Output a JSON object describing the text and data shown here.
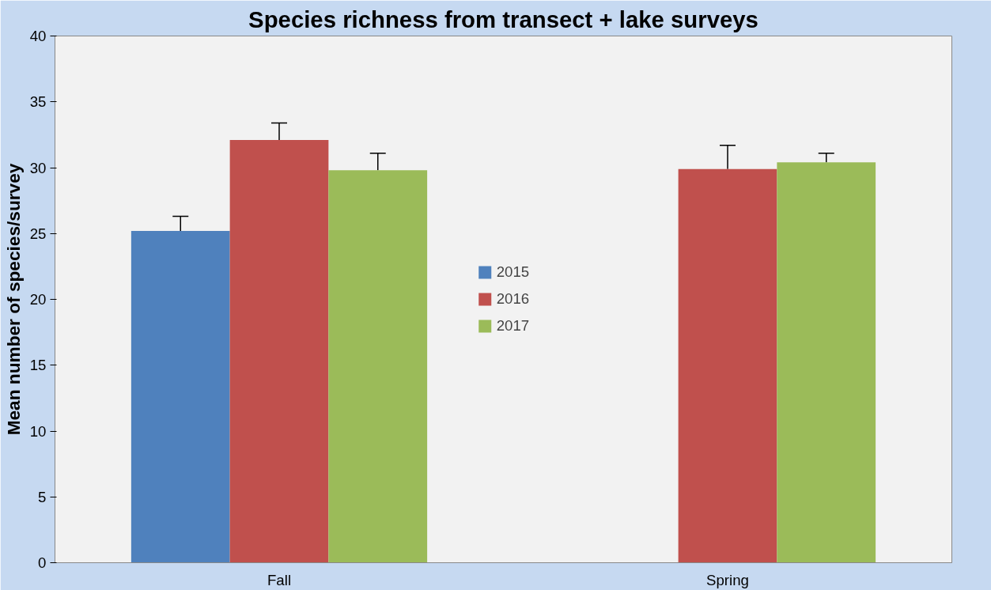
{
  "chart_data": {
    "type": "bar",
    "title": "Species richness from transect + lake surveys",
    "ylabel": "Mean number of species/survey",
    "categories": [
      "Fall",
      "Spring"
    ],
    "series": [
      {
        "name": "2015",
        "color": "#4f81bd",
        "values": [
          25.2,
          null
        ],
        "errors": [
          [
            25.2,
            26.3
          ],
          null
        ]
      },
      {
        "name": "2016",
        "color": "#c0504d",
        "values": [
          32.1,
          29.9
        ],
        "errors": [
          [
            32.1,
            33.4
          ],
          [
            29.9,
            31.7
          ]
        ]
      },
      {
        "name": "2017",
        "color": "#9bbb59",
        "values": [
          29.8,
          30.4
        ],
        "errors": [
          [
            29.8,
            31.1
          ],
          [
            30.4,
            31.1
          ]
        ]
      }
    ],
    "ylim": [
      0,
      40
    ],
    "yticks": [
      0,
      5,
      10,
      15,
      20,
      25,
      30,
      35,
      40
    ],
    "grid": false,
    "legend": "center"
  }
}
